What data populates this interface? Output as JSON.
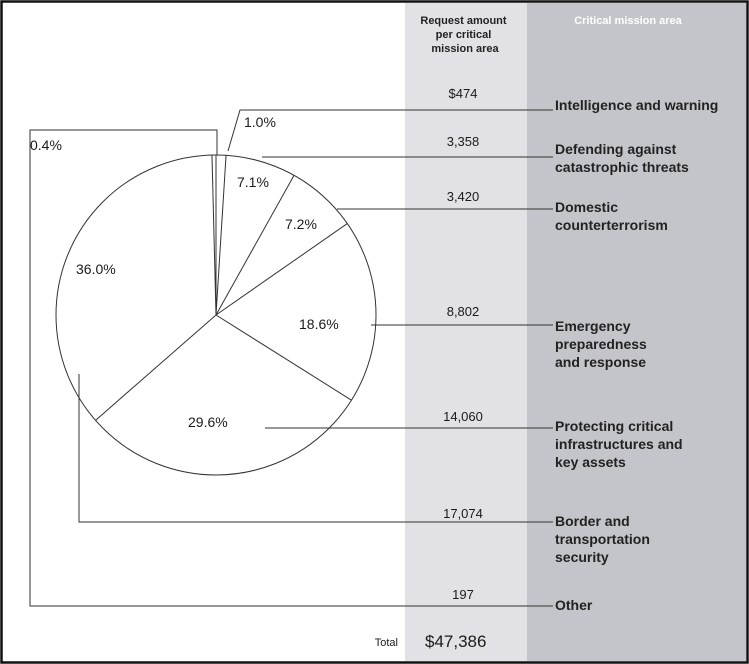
{
  "chart_data": {
    "type": "pie",
    "columns": {
      "amount_header": [
        "Request amount",
        "per critical",
        "mission area"
      ],
      "area_header": "Critical mission area"
    },
    "slices": [
      {
        "area": [
          "Intelligence and warning"
        ],
        "amount": "$474",
        "percent": 1.0,
        "percent_label": "1.0%"
      },
      {
        "area": [
          "Defending against",
          "catastrophic threats"
        ],
        "amount": "3,358",
        "percent": 7.1,
        "percent_label": "7.1%"
      },
      {
        "area": [
          "Domestic",
          "counterterrorism"
        ],
        "amount": "3,420",
        "percent": 7.2,
        "percent_label": "7.2%"
      },
      {
        "area": [
          "Emergency",
          "preparedness",
          "and response"
        ],
        "amount": "8,802",
        "percent": 18.6,
        "percent_label": "18.6%"
      },
      {
        "area": [
          "Protecting critical",
          "infrastructures and",
          "key assets"
        ],
        "amount": "14,060",
        "percent": 29.6,
        "percent_label": "29.6%"
      },
      {
        "area": [
          "Border and",
          "transportation",
          "security"
        ],
        "amount": "17,074",
        "percent": 36.0,
        "percent_label": "36.0%"
      },
      {
        "area": [
          "Other"
        ],
        "amount": "197",
        "percent": 0.4,
        "percent_label": "0.4%"
      }
    ],
    "total_label": "Total",
    "total_value": "$47,386"
  },
  "colors": {
    "amount_column_bg": "#e2e2e6",
    "area_column_bg": "#c4c5ca",
    "pie_fill": "#ffffff",
    "line": "#333333",
    "frame_border": "#111111"
  }
}
